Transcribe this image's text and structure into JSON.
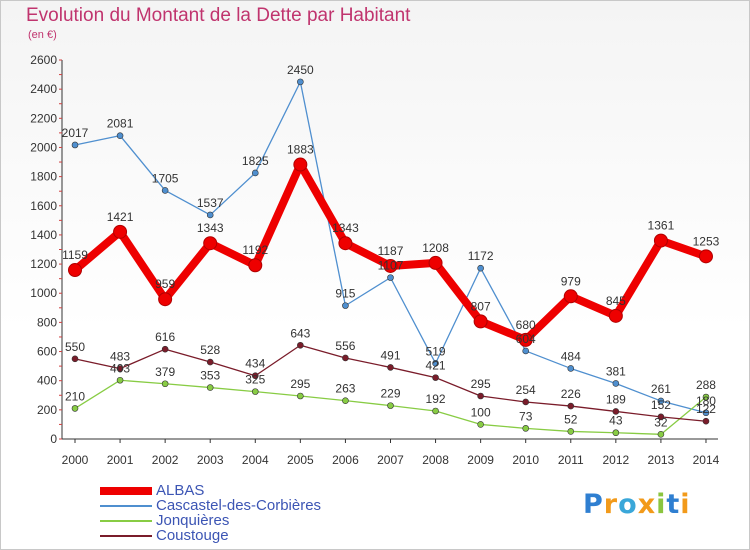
{
  "chart_data": {
    "type": "line",
    "title": "Evolution du Montant de la Dette par Habitant",
    "subtitle": "(en €)",
    "x": [
      "2000",
      "2001",
      "2002",
      "2003",
      "2004",
      "2005",
      "2006",
      "2007",
      "2008",
      "2009",
      "2010",
      "2011",
      "2012",
      "2013",
      "2014"
    ],
    "ylim": [
      0,
      2600
    ],
    "yticks": [
      0,
      200,
      400,
      600,
      800,
      1000,
      1200,
      1400,
      1600,
      1800,
      2000,
      2200,
      2400,
      2600
    ],
    "grid": false,
    "legend_position": "bottom-left",
    "series": [
      {
        "name": "ALBAS",
        "color": "#ee0000",
        "values": [
          1159,
          1421,
          959,
          1343,
          1192,
          1883,
          1343,
          1187,
          1208,
          807,
          680,
          979,
          845,
          1361,
          1253
        ]
      },
      {
        "name": "Cascastel-des-Corbières",
        "color": "#4f8fcf",
        "values": [
          2017,
          2081,
          1705,
          1537,
          1825,
          2450,
          915,
          1107,
          519,
          1172,
          604,
          484,
          381,
          261,
          180
        ]
      },
      {
        "name": "Jonquières",
        "color": "#88cc44",
        "values": [
          210,
          403,
          379,
          353,
          325,
          295,
          263,
          229,
          192,
          100,
          73,
          52,
          43,
          32,
          288
        ]
      },
      {
        "name": "Coustouge",
        "color": "#7a1c2a",
        "values": [
          550,
          483,
          616,
          528,
          434,
          643,
          556,
          491,
          421,
          295,
          254,
          226,
          189,
          152,
          122
        ]
      }
    ]
  },
  "logo_text": "Proxiti"
}
